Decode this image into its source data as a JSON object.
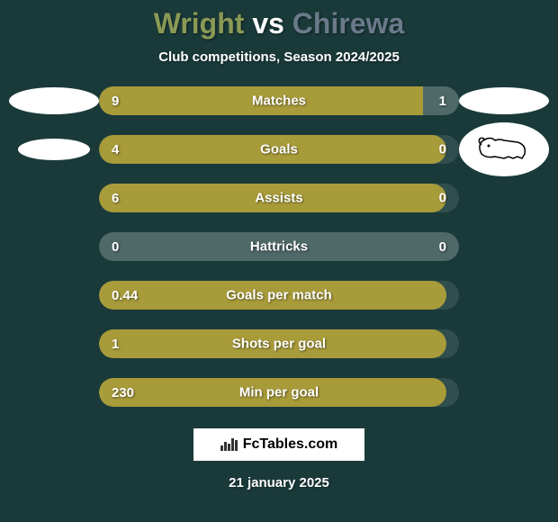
{
  "colors": {
    "background": "#1a3a3a",
    "bar_fill": "#a89b3a",
    "bar_empty": "rgba(255,255,255,0.15)",
    "p1_color": "#8a9a55",
    "p2_color": "#6a7a8a",
    "text": "#ffffff"
  },
  "header": {
    "player1": "Wright",
    "vs": "vs",
    "player2": "Chirewa",
    "subtitle": "Club competitions, Season 2024/2025"
  },
  "stats": [
    {
      "label": "Matches",
      "p1": "9",
      "p2": "1",
      "p1_pct": 90,
      "p2_pct": 10
    },
    {
      "label": "Goals",
      "p1": "4",
      "p2": "0",
      "p1_pct": 100,
      "p2_pct": 0
    },
    {
      "label": "Assists",
      "p1": "6",
      "p2": "0",
      "p1_pct": 100,
      "p2_pct": 0
    },
    {
      "label": "Hattricks",
      "p1": "0",
      "p2": "0",
      "p1_pct": 50,
      "p2_pct": 0,
      "neutral": true
    },
    {
      "label": "Goals per match",
      "p1": "0.44",
      "p2": "",
      "p1_pct": 100,
      "p2_pct": 0,
      "single": true
    },
    {
      "label": "Shots per goal",
      "p1": "1",
      "p2": "",
      "p1_pct": 100,
      "p2_pct": 0,
      "single": true
    },
    {
      "label": "Min per goal",
      "p1": "230",
      "p2": "",
      "p1_pct": 100,
      "p2_pct": 0,
      "single": true
    }
  ],
  "branding": "FcTables.com",
  "date": "21 january 2025"
}
